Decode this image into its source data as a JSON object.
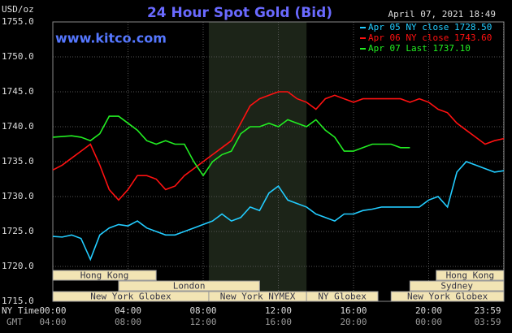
{
  "chart_data": {
    "type": "line",
    "title": "24 Hour Spot Gold (Bid)",
    "units": "USD/oz",
    "source": "www.kitco.com",
    "timestamp": "April 07, 2021 18:49",
    "x_label": "NY Time",
    "x_label2": "GMT",
    "x": [
      0,
      0.5,
      1,
      1.5,
      2,
      2.5,
      3,
      3.5,
      4,
      4.5,
      5,
      5.5,
      6,
      6.5,
      7,
      7.5,
      8,
      8.5,
      9,
      9.5,
      10,
      10.5,
      11,
      11.5,
      12,
      12.5,
      13,
      13.5,
      14,
      14.5,
      15,
      15.5,
      16,
      16.5,
      17,
      17.5,
      18,
      18.5,
      19,
      19.5,
      20,
      20.5,
      21,
      21.5,
      22,
      22.5,
      23,
      23.5,
      24
    ],
    "series": [
      {
        "name": "Apr 05 NY close 1728.50",
        "color": "#22ccff",
        "values": [
          1724.3,
          1724.2,
          1724.5,
          1724,
          1721,
          1724.5,
          1725.5,
          1726,
          1725.8,
          1726.5,
          1725.5,
          1725,
          1724.5,
          1724.5,
          1725,
          1725.5,
          1726,
          1726.5,
          1727.5,
          1726.5,
          1727,
          1728.5,
          1728,
          1730.5,
          1731.5,
          1729.5,
          1729,
          1728.5,
          1727.5,
          1727,
          1726.5,
          1727.5,
          1727.5,
          1728,
          1728.2,
          1728.5,
          1728.5,
          1728.5,
          1728.5,
          1728.5,
          1729.5,
          1730,
          1728.5,
          1733.5,
          1735,
          1734.5,
          1734,
          1733.5,
          1733.7
        ]
      },
      {
        "name": "Apr 06 NY close 1743.60",
        "color": "#ff1111",
        "values": [
          1733.8,
          1734.5,
          1735.5,
          1736.5,
          1737.5,
          1734.5,
          1731,
          1729.5,
          1731,
          1733,
          1733,
          1732.5,
          1731,
          1731.5,
          1733,
          1734,
          1735,
          1736,
          1737,
          1738,
          1740.5,
          1743,
          1744,
          1744.5,
          1745,
          1745,
          1744,
          1743.5,
          1742.5,
          1744,
          1744.5,
          1744,
          1743.5,
          1744,
          1744,
          1744,
          1744,
          1744,
          1743.5,
          1744,
          1743.5,
          1742.5,
          1742,
          1740.5,
          1739.5,
          1738.5,
          1737.5,
          1738,
          1738.3
        ]
      },
      {
        "name": "Apr 07 Last 1737.10",
        "color": "#22ee22",
        "values": [
          1738.5,
          1738.6,
          1738.7,
          1738.5,
          1738,
          1739,
          1741.5,
          1741.5,
          1740.5,
          1739.5,
          1738,
          1737.5,
          1738,
          1737.5,
          1737.5,
          1735,
          1733,
          1735,
          1736,
          1736.5,
          1739,
          1740,
          1740,
          1740.5,
          1740,
          1741,
          1740.5,
          1740,
          1741,
          1739.5,
          1738.5,
          1736.5,
          1736.5,
          1737,
          1737.5,
          1737.5,
          1737.5,
          1737,
          1737,
          null,
          null,
          null,
          null,
          null,
          null,
          null,
          null,
          null,
          null
        ]
      }
    ],
    "xlim": [
      0,
      24
    ],
    "xticks": [
      {
        "value": 0,
        "label": "00:00"
      },
      {
        "value": 4,
        "label": "04:00"
      },
      {
        "value": 8,
        "label": "08:00"
      },
      {
        "value": 12,
        "label": "12:00"
      },
      {
        "value": 16,
        "label": "16:00"
      },
      {
        "value": 20,
        "label": "20:00"
      },
      {
        "value": 23.98,
        "label": "23:59"
      }
    ],
    "gmt_labels": [
      "04:00",
      "08:00",
      "12:00",
      "16:00",
      "20:00",
      "00:00",
      "03:59"
    ],
    "ylim": [
      1715,
      1755
    ],
    "yticks": [
      {
        "value": 1715,
        "label": "1715.0"
      },
      {
        "value": 1720,
        "label": "1720.0"
      },
      {
        "value": 1725,
        "label": "1725.0"
      },
      {
        "value": 1730,
        "label": "1730.0"
      },
      {
        "value": 1735,
        "label": "1735.0"
      },
      {
        "value": 1740,
        "label": "1740.0"
      },
      {
        "value": 1745,
        "label": "1745.0"
      },
      {
        "value": 1750,
        "label": "1750.0"
      },
      {
        "value": 1755,
        "label": "1755.0"
      }
    ],
    "grid": true,
    "highlight_x": [
      8.3,
      13.5
    ],
    "sessions": [
      [
        {
          "label": "Hong Kong",
          "start": 0,
          "end": 5.5
        },
        {
          "label": "Hong Kong",
          "start": 20.4,
          "end": 24
        }
      ],
      [
        {
          "label": "London",
          "start": 3.5,
          "end": 11
        },
        {
          "label": "Sydney",
          "start": 19,
          "end": 24
        }
      ],
      [
        {
          "label": "New York Globex",
          "start": 0,
          "end": 8.3
        },
        {
          "label": "New York NYMEX",
          "start": 8.3,
          "end": 13.5
        },
        {
          "label": "NY Globex",
          "start": 13.5,
          "end": 17.3
        },
        {
          "label": "New York Globex",
          "start": 18,
          "end": 24
        }
      ]
    ]
  }
}
